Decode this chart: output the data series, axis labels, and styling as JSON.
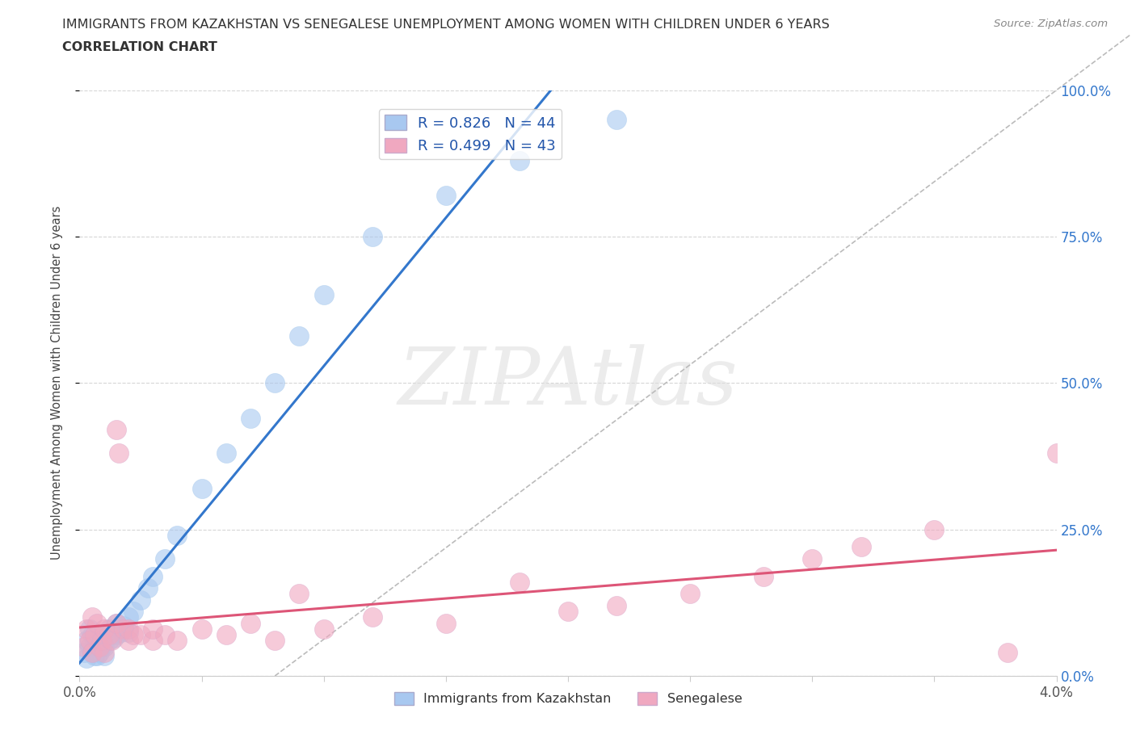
{
  "title_line1": "IMMIGRANTS FROM KAZAKHSTAN VS SENEGALESE UNEMPLOYMENT AMONG WOMEN WITH CHILDREN UNDER 6 YEARS",
  "title_line2": "CORRELATION CHART",
  "source": "Source: ZipAtlas.com",
  "ylabel_ticks": [
    0.0,
    0.25,
    0.5,
    0.75,
    1.0
  ],
  "ylabel_labels": [
    "0.0%",
    "25.0%",
    "50.0%",
    "75.0%",
    "100.0%"
  ],
  "xlim": [
    0.0,
    0.04
  ],
  "ylim": [
    0.0,
    1.0
  ],
  "kaz_color": "#a8c8f0",
  "sen_color": "#f0a8c0",
  "kaz_line_color": "#3377cc",
  "sen_line_color": "#dd5577",
  "dashed_line_color": "#bbbbbb",
  "legend_R1": "R = 0.826",
  "legend_N1": "N = 44",
  "legend_R2": "R = 0.499",
  "legend_N2": "N = 43",
  "legend_label1": "Immigrants from Kazakhstan",
  "legend_label2": "Senegalese",
  "watermark_text": "ZIPAtlas",
  "title_fontsize": 11.5,
  "kaz_x": [
    0.0002,
    0.0003,
    0.0003,
    0.0004,
    0.0004,
    0.0005,
    0.0005,
    0.0006,
    0.0006,
    0.0007,
    0.0007,
    0.0008,
    0.0008,
    0.0009,
    0.001,
    0.001,
    0.001,
    0.0012,
    0.0012,
    0.0013,
    0.0014,
    0.0015,
    0.0015,
    0.0016,
    0.0017,
    0.0018,
    0.002,
    0.002,
    0.0022,
    0.0025,
    0.0028,
    0.003,
    0.0035,
    0.004,
    0.005,
    0.006,
    0.007,
    0.008,
    0.009,
    0.01,
    0.012,
    0.015,
    0.018,
    0.022
  ],
  "kaz_y": [
    0.04,
    0.06,
    0.03,
    0.08,
    0.05,
    0.07,
    0.04,
    0.06,
    0.035,
    0.05,
    0.035,
    0.06,
    0.04,
    0.05,
    0.07,
    0.05,
    0.035,
    0.08,
    0.06,
    0.07,
    0.065,
    0.09,
    0.07,
    0.08,
    0.075,
    0.085,
    0.1,
    0.075,
    0.11,
    0.13,
    0.15,
    0.17,
    0.2,
    0.24,
    0.32,
    0.38,
    0.44,
    0.5,
    0.58,
    0.65,
    0.75,
    0.82,
    0.88,
    0.95
  ],
  "sen_x": [
    0.0002,
    0.0003,
    0.0004,
    0.0005,
    0.0005,
    0.0006,
    0.0007,
    0.0008,
    0.0009,
    0.001,
    0.001,
    0.0012,
    0.0013,
    0.0015,
    0.0015,
    0.0016,
    0.0018,
    0.002,
    0.002,
    0.0022,
    0.0025,
    0.003,
    0.003,
    0.0035,
    0.004,
    0.005,
    0.006,
    0.007,
    0.008,
    0.009,
    0.01,
    0.012,
    0.015,
    0.018,
    0.02,
    0.022,
    0.025,
    0.028,
    0.03,
    0.032,
    0.035,
    0.038,
    0.04
  ],
  "sen_y": [
    0.05,
    0.08,
    0.06,
    0.04,
    0.1,
    0.07,
    0.09,
    0.05,
    0.06,
    0.04,
    0.08,
    0.07,
    0.06,
    0.42,
    0.09,
    0.38,
    0.08,
    0.06,
    0.08,
    0.07,
    0.07,
    0.06,
    0.08,
    0.07,
    0.06,
    0.08,
    0.07,
    0.09,
    0.06,
    0.14,
    0.08,
    0.1,
    0.09,
    0.16,
    0.11,
    0.12,
    0.14,
    0.17,
    0.2,
    0.22,
    0.25,
    0.04,
    0.38
  ]
}
